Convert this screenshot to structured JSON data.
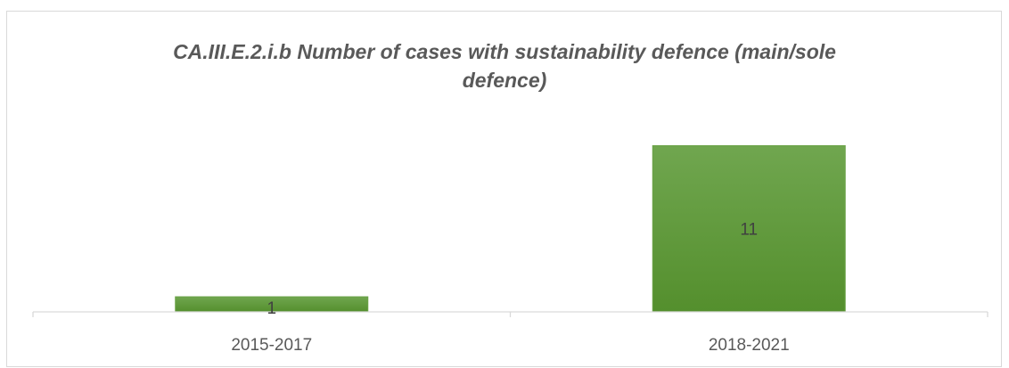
{
  "chart_data": {
    "type": "bar",
    "title": "CA.III.E.2.i.b Number of cases with sustainability defence (main/sole defence)",
    "categories": [
      "2015-2017",
      "2018-2021"
    ],
    "values": [
      1,
      11
    ],
    "data_labels": [
      "1",
      "11"
    ],
    "ylim": [
      0,
      11.5
    ],
    "xlabel": "",
    "ylabel": "",
    "grid": false,
    "legend": "none",
    "colors": {
      "bar_top": "#70a64f",
      "bar_bottom": "#548f2d",
      "bar_edge": "#6aa247",
      "axis": "#d9d9d9",
      "text": "#595959",
      "label": "#404040"
    }
  }
}
